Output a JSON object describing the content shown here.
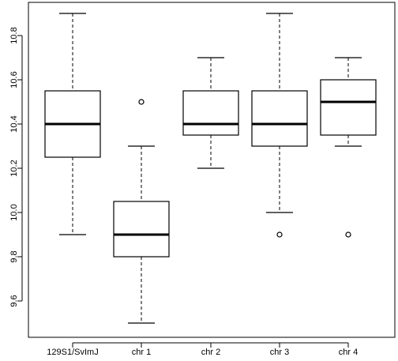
{
  "chart_data": {
    "type": "boxplot",
    "title": "",
    "xlabel": "",
    "ylabel": "",
    "ylim": [
      9.5,
      10.9
    ],
    "y_ticks": [
      9.6,
      9.8,
      10.0,
      10.2,
      10.4,
      10.6,
      10.8
    ],
    "y_tick_labels": [
      "9.6",
      "9.8",
      "10.0",
      "10.2",
      "10.4",
      "10.6",
      "10.8"
    ],
    "grid": false,
    "categories": [
      "129S1/SvImJ",
      "chr 1",
      "chr 2",
      "chr 3",
      "chr 4"
    ],
    "boxes": [
      {
        "category": "129S1/SvImJ",
        "whisker_low": 9.9,
        "q1": 10.25,
        "median": 10.4,
        "q3": 10.55,
        "whisker_high": 10.9,
        "outliers": []
      },
      {
        "category": "chr 1",
        "whisker_low": 9.5,
        "q1": 9.8,
        "median": 9.9,
        "q3": 10.05,
        "whisker_high": 10.3,
        "outliers": [
          10.5
        ]
      },
      {
        "category": "chr 2",
        "whisker_low": 10.2,
        "q1": 10.35,
        "median": 10.4,
        "q3": 10.55,
        "whisker_high": 10.7,
        "outliers": []
      },
      {
        "category": "chr 3",
        "whisker_low": 10.0,
        "q1": 10.3,
        "median": 10.4,
        "q3": 10.55,
        "whisker_high": 10.9,
        "outliers": [
          9.9
        ]
      },
      {
        "category": "chr 4",
        "whisker_low": 10.3,
        "q1": 10.35,
        "median": 10.5,
        "q3": 10.6,
        "whisker_high": 10.7,
        "outliers": [
          9.9
        ]
      }
    ]
  }
}
